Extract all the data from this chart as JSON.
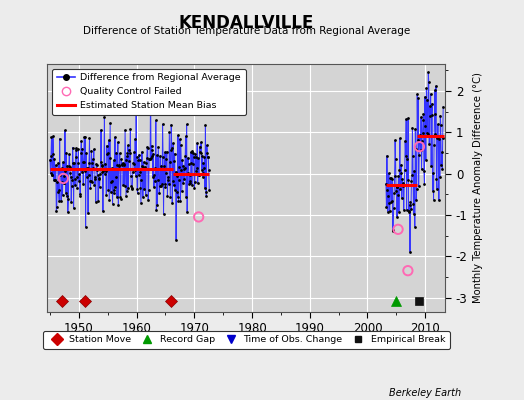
{
  "title": "KENDALLVILLE",
  "subtitle": "Difference of Station Temperature Data from Regional Average",
  "ylabel": "Monthly Temperature Anomaly Difference (°C)",
  "xlabel_years": [
    1950,
    1960,
    1970,
    1980,
    1990,
    2000,
    2010
  ],
  "xlim": [
    1944.5,
    2013.5
  ],
  "ylim": [
    -3.35,
    2.65
  ],
  "yticks": [
    -3,
    -2,
    -1,
    0,
    1,
    2
  ],
  "bg_color": "#ececec",
  "plot_bg_color": "#d4d4d4",
  "grid_color": "#ffffff",
  "line_color": "#3333ff",
  "dot_color": "#000000",
  "bias_color": "#ff0000",
  "qc_color": "#ff69b4",
  "station_move_years": [
    1947,
    1951,
    1966
  ],
  "record_gap_years": [
    2005
  ],
  "empirical_break_years": [
    2009
  ],
  "seed": 42
}
